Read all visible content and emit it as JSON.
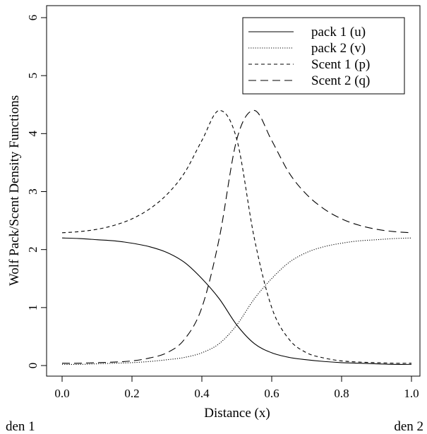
{
  "chart_data": {
    "type": "line",
    "title": "",
    "xlabel": "Distance (x)",
    "ylabel": "Wolf Pack/Scent Density Functions",
    "xlim": [
      0.0,
      1.0
    ],
    "ylim": [
      0,
      6
    ],
    "x_ticks": [
      "0.0",
      "0.2",
      "0.4",
      "0.6",
      "0.8",
      "1.0"
    ],
    "y_ticks": [
      "0",
      "1",
      "2",
      "3",
      "4",
      "5",
      "6"
    ],
    "grid": false,
    "legend_position": "top-right",
    "x": [
      0.0,
      0.05,
      0.1,
      0.15,
      0.2,
      0.25,
      0.3,
      0.35,
      0.4,
      0.45,
      0.5,
      0.55,
      0.6,
      0.65,
      0.7,
      0.75,
      0.8,
      0.85,
      0.9,
      0.95,
      1.0
    ],
    "series": [
      {
        "name": "pack 1 (u)",
        "dash": "solid",
        "values": [
          2.2,
          2.19,
          2.17,
          2.15,
          2.11,
          2.05,
          1.95,
          1.78,
          1.5,
          1.15,
          0.7,
          0.38,
          0.22,
          0.14,
          0.1,
          0.07,
          0.05,
          0.04,
          0.03,
          0.02,
          0.02
        ]
      },
      {
        "name": "pack 2 (v)",
        "dash": "dotted",
        "values": [
          0.02,
          0.02,
          0.03,
          0.04,
          0.05,
          0.07,
          0.1,
          0.14,
          0.22,
          0.38,
          0.7,
          1.15,
          1.5,
          1.78,
          1.95,
          2.05,
          2.11,
          2.15,
          2.17,
          2.19,
          2.2
        ]
      },
      {
        "name": "Scent 1 (p)",
        "dash": "short-dash",
        "values": [
          2.29,
          2.31,
          2.35,
          2.42,
          2.53,
          2.7,
          2.95,
          3.32,
          3.88,
          4.4,
          3.9,
          2.2,
          1.0,
          0.45,
          0.22,
          0.13,
          0.08,
          0.06,
          0.05,
          0.04,
          0.04
        ]
      },
      {
        "name": "Scent 2 (q)",
        "dash": "long-dash",
        "values": [
          0.04,
          0.04,
          0.05,
          0.06,
          0.08,
          0.13,
          0.22,
          0.45,
          1.0,
          2.2,
          3.9,
          4.4,
          3.88,
          3.32,
          2.95,
          2.7,
          2.53,
          2.42,
          2.35,
          2.31,
          2.29
        ]
      }
    ]
  },
  "annotations": {
    "left": "den 1",
    "right": "den 2"
  },
  "colors": {
    "line": "#000000",
    "background": "#ffffff"
  }
}
